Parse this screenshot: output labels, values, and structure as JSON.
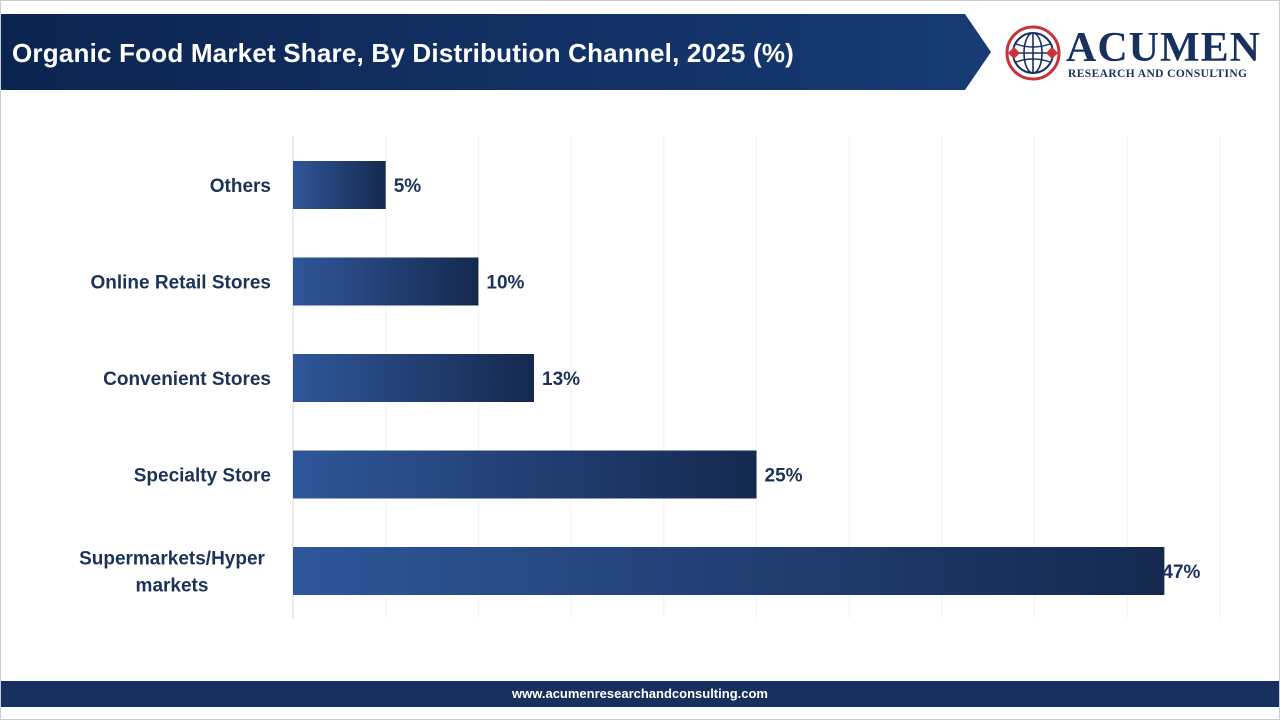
{
  "header": {
    "title": "Organic Food Market Share, By Distribution Channel, 2025 (%)"
  },
  "logo": {
    "name": "ACUMEN",
    "tagline": "RESEARCH AND CONSULTING",
    "icon": "globe-icon"
  },
  "colors": {
    "banner": "#0f2a57",
    "bar_start": "#2f5699",
    "bar_end": "#15294f",
    "footer": "#17305e",
    "text": "#1b3358"
  },
  "chart_data": {
    "type": "bar",
    "orientation": "horizontal",
    "title": "Organic Food Market Share, By Distribution Channel, 2025 (%)",
    "categories": [
      "Others",
      "Online Retail Stores",
      "Convenient Stores",
      "Specialty Store",
      "Supermarkets/Hyper markets"
    ],
    "category_lines": [
      [
        "Others"
      ],
      [
        "Online Retail Stores"
      ],
      [
        "Convenient Stores"
      ],
      [
        "Specialty Store"
      ],
      [
        "Supermarkets/Hyper",
        "markets"
      ]
    ],
    "values": [
      5,
      10,
      13,
      25,
      47
    ],
    "value_labels": [
      "5%",
      "10%",
      "13%",
      "25%",
      "47%"
    ],
    "xlim": [
      0,
      50
    ],
    "grid": true,
    "xlabel": "",
    "ylabel": ""
  },
  "footer": {
    "url": "www.acumenresearchandconsulting.com"
  }
}
